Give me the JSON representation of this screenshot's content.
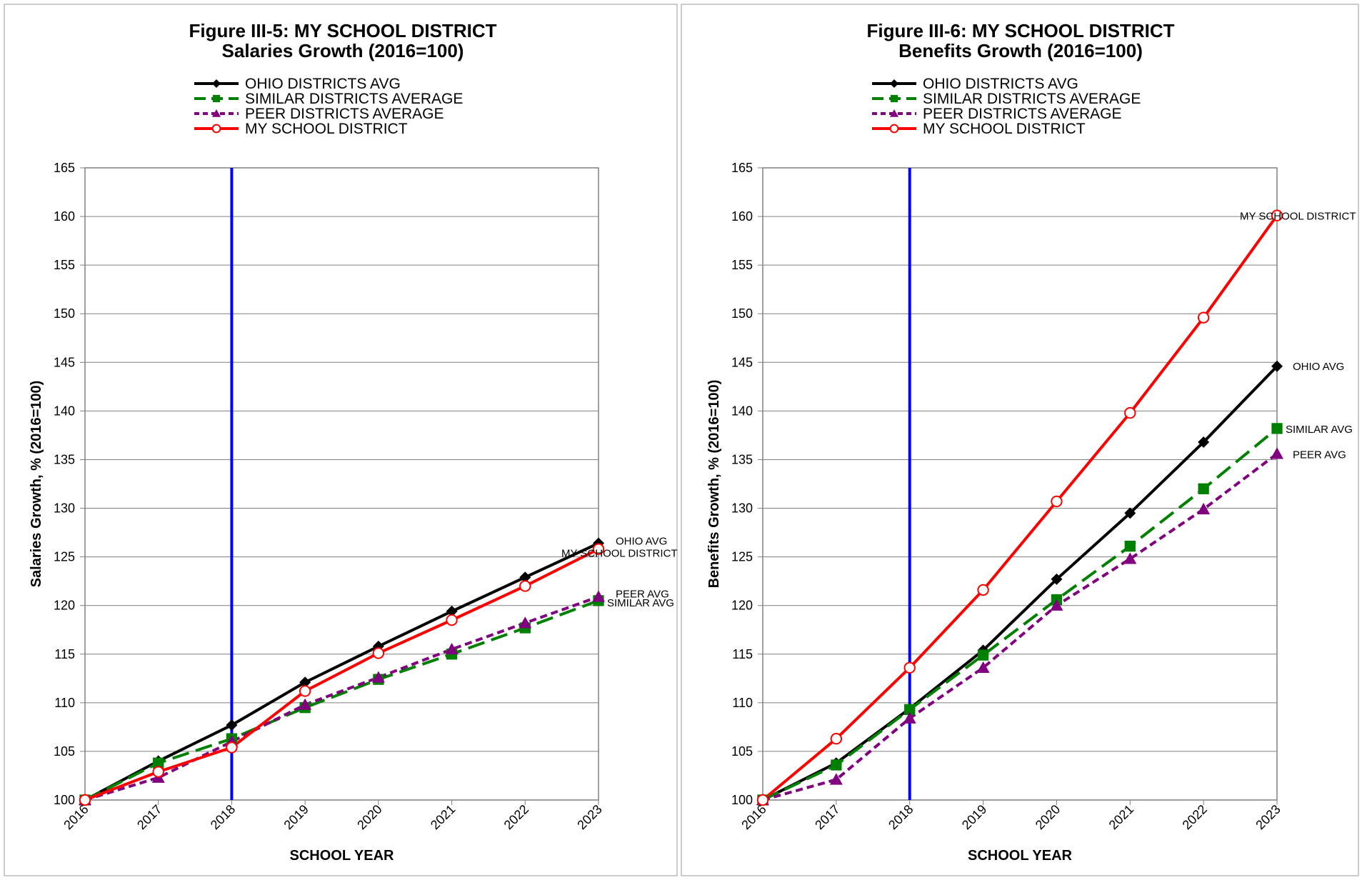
{
  "chart_data": [
    {
      "type": "line",
      "title": "Figure III-5: MY SCHOOL DISTRICT",
      "subtitle": "Salaries Growth (2016=100)",
      "xlabel": "SCHOOL YEAR",
      "ylabel": "Salaries Growth, % (2016=100)",
      "categories": [
        "2016",
        "2017",
        "2018",
        "2019",
        "2020",
        "2021",
        "2022",
        "2023"
      ],
      "ylim": [
        100,
        165
      ],
      "yticks": [
        "100",
        "105",
        "110",
        "115",
        "120",
        "125",
        "130",
        "135",
        "140",
        "145",
        "150",
        "155",
        "160",
        "165"
      ],
      "grid": true,
      "legend_position": "top",
      "marker_line_at": "2018",
      "marker_line_color": "#0000ff",
      "series": [
        {
          "name": "OHIO DISTRICTS AVG",
          "end_label": "OHIO AVG",
          "color": "#000000",
          "marker": "diamond",
          "dash": "solid",
          "values": [
            100,
            104,
            107.7,
            112.1,
            115.8,
            119.4,
            122.9,
            126.4
          ]
        },
        {
          "name": "SIMILAR DISTRICTS AVERAGE",
          "end_label": "SIMILAR AVG",
          "color": "#008000",
          "marker": "square",
          "dash": "long-dash",
          "values": [
            100,
            103.8,
            106.3,
            109.5,
            112.4,
            115.0,
            117.7,
            120.5
          ]
        },
        {
          "name": "PEER DISTRICTS AVERAGE",
          "end_label": "PEER AVG",
          "color": "#800080",
          "marker": "triangle",
          "dash": "short-dash",
          "values": [
            100,
            102.3,
            106.0,
            109.8,
            112.6,
            115.5,
            118.2,
            120.9
          ]
        },
        {
          "name": "MY SCHOOL DISTRICT",
          "end_label": "MY SCHOOL DISTRICT",
          "color": "#ff0000",
          "marker": "circle",
          "dash": "solid",
          "values": [
            100,
            102.9,
            105.4,
            111.2,
            115.1,
            118.5,
            122.0,
            125.8
          ]
        }
      ]
    },
    {
      "type": "line",
      "title": "Figure III-6: MY SCHOOL DISTRICT",
      "subtitle": "Benefits Growth (2016=100)",
      "xlabel": "SCHOOL YEAR",
      "ylabel": "Benefits Growth, % (2016=100)",
      "categories": [
        "2016",
        "2017",
        "2018",
        "2019",
        "2020",
        "2021",
        "2022",
        "2023"
      ],
      "ylim": [
        100,
        165
      ],
      "yticks": [
        "100",
        "105",
        "110",
        "115",
        "120",
        "125",
        "130",
        "135",
        "140",
        "145",
        "150",
        "155",
        "160",
        "165"
      ],
      "grid": true,
      "legend_position": "top",
      "marker_line_at": "2018",
      "marker_line_color": "#0000ff",
      "series": [
        {
          "name": "OHIO DISTRICTS AVG",
          "end_label": "OHIO AVG",
          "color": "#000000",
          "marker": "diamond",
          "dash": "solid",
          "values": [
            100,
            103.8,
            109.4,
            115.4,
            122.7,
            129.5,
            136.8,
            144.6
          ]
        },
        {
          "name": "SIMILAR DISTRICTS AVERAGE",
          "end_label": "SIMILAR AVG",
          "color": "#008000",
          "marker": "square",
          "dash": "long-dash",
          "values": [
            100,
            103.6,
            109.3,
            114.9,
            120.6,
            126.1,
            132.0,
            138.2
          ]
        },
        {
          "name": "PEER DISTRICTS AVERAGE",
          "end_label": "PEER AVG",
          "color": "#800080",
          "marker": "triangle",
          "dash": "short-dash",
          "values": [
            100,
            102.1,
            108.4,
            113.6,
            120.0,
            124.8,
            129.9,
            135.6
          ]
        },
        {
          "name": "MY SCHOOL DISTRICT",
          "end_label": "MY SCHOOL DISTRICT",
          "color": "#ff0000",
          "marker": "circle",
          "dash": "solid",
          "values": [
            100,
            106.3,
            113.6,
            121.6,
            130.7,
            139.8,
            149.6,
            160.1
          ]
        }
      ]
    }
  ]
}
